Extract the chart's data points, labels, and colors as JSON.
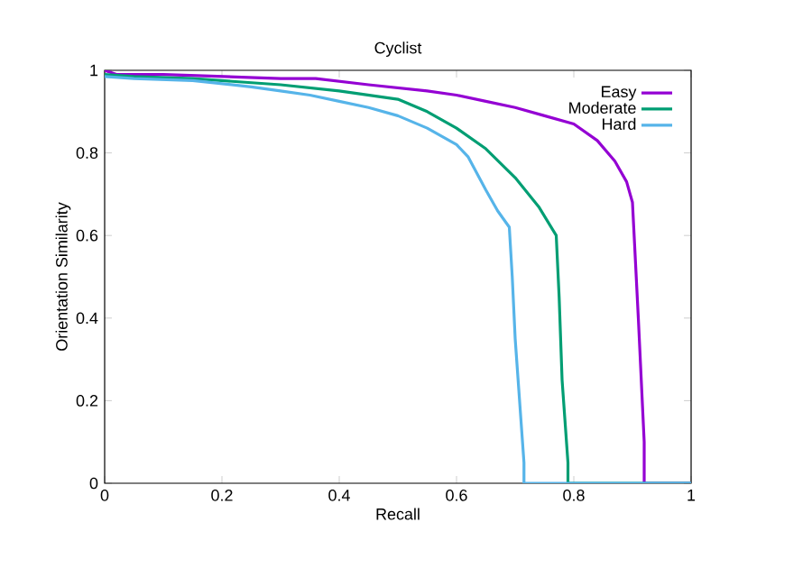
{
  "chart_data": {
    "type": "line",
    "title": "Cyclist",
    "xlabel": "Recall",
    "ylabel": "Orientation Similarity",
    "xlim": [
      0,
      1
    ],
    "ylim": [
      0,
      1
    ],
    "xticks": [
      0,
      0.2,
      0.4,
      0.6,
      0.8,
      1
    ],
    "yticks": [
      0,
      0.2,
      0.4,
      0.6,
      0.8,
      1
    ],
    "grid": false,
    "legend": "top right",
    "marker": "none",
    "line_style": "solid",
    "series": [
      {
        "name": "Easy",
        "color": "#9400d3",
        "x": [
          0,
          0.02,
          0.1,
          0.2,
          0.3,
          0.36,
          0.45,
          0.55,
          0.6,
          0.65,
          0.7,
          0.75,
          0.8,
          0.84,
          0.87,
          0.89,
          0.9,
          0.91,
          0.92,
          0.92,
          1
        ],
        "values": [
          1,
          0.99,
          0.99,
          0.985,
          0.98,
          0.98,
          0.965,
          0.95,
          0.94,
          0.925,
          0.91,
          0.89,
          0.87,
          0.83,
          0.78,
          0.73,
          0.68,
          0.4,
          0.1,
          0,
          0
        ]
      },
      {
        "name": "Moderate",
        "color": "#009e73",
        "x": [
          0,
          0.05,
          0.15,
          0.25,
          0.3,
          0.4,
          0.45,
          0.5,
          0.55,
          0.6,
          0.65,
          0.7,
          0.74,
          0.77,
          0.775,
          0.78,
          0.79,
          0.79,
          1
        ],
        "values": [
          0.99,
          0.985,
          0.98,
          0.97,
          0.965,
          0.95,
          0.94,
          0.93,
          0.9,
          0.86,
          0.81,
          0.74,
          0.67,
          0.6,
          0.45,
          0.25,
          0.05,
          0,
          0
        ]
      },
      {
        "name": "Hard",
        "color": "#56b4e9",
        "x": [
          0,
          0.05,
          0.15,
          0.25,
          0.3,
          0.35,
          0.4,
          0.45,
          0.5,
          0.55,
          0.6,
          0.62,
          0.65,
          0.67,
          0.69,
          0.695,
          0.7,
          0.71,
          0.715,
          0.715,
          1
        ],
        "values": [
          0.985,
          0.98,
          0.975,
          0.96,
          0.95,
          0.94,
          0.925,
          0.91,
          0.89,
          0.86,
          0.82,
          0.79,
          0.71,
          0.66,
          0.62,
          0.5,
          0.35,
          0.15,
          0.05,
          0,
          0
        ]
      }
    ]
  }
}
